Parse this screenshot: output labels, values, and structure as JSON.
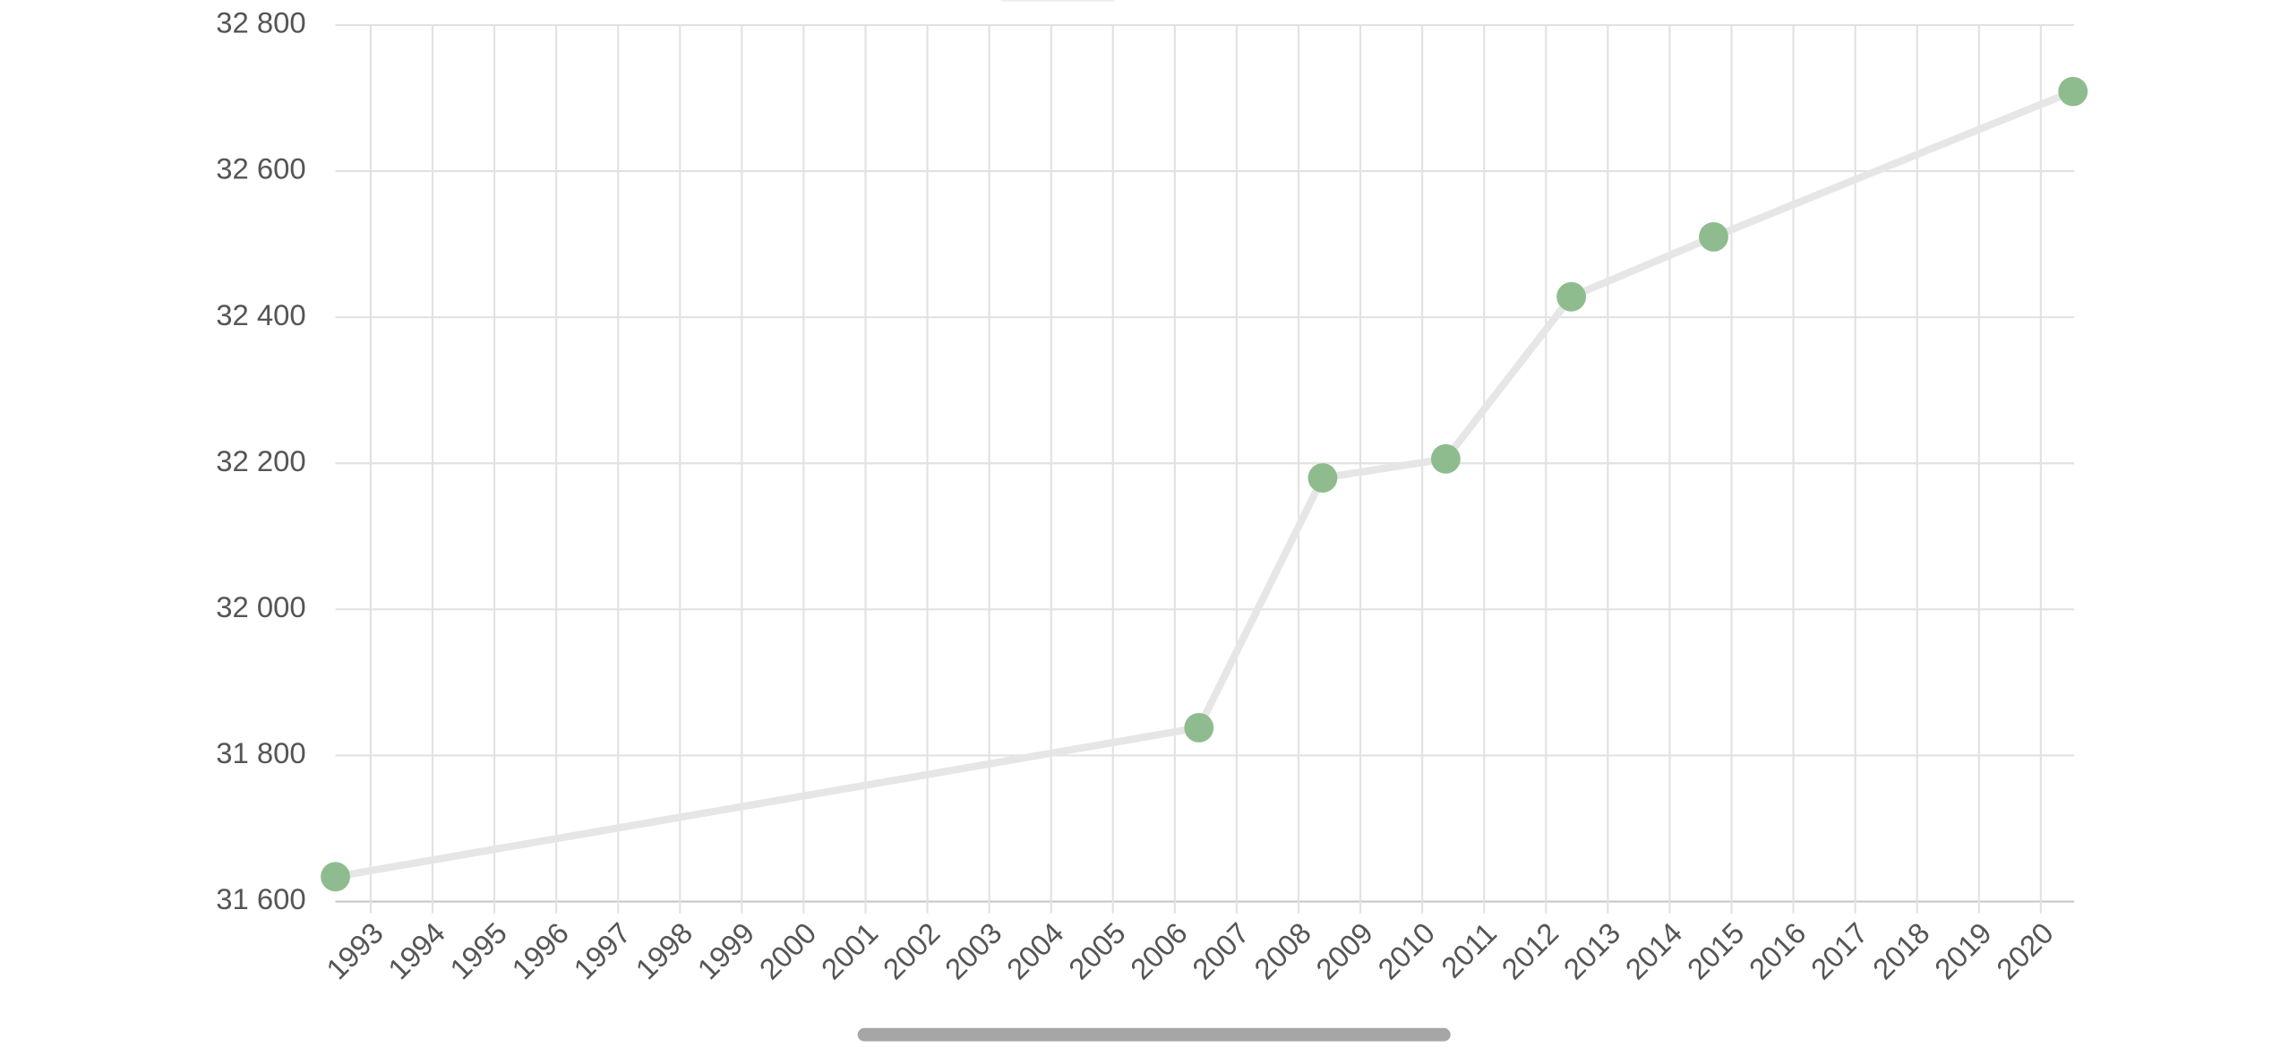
{
  "chart_data": {
    "type": "line",
    "x": [
      1992.43,
      2006.39,
      2008.39,
      2010.38,
      2012.41,
      2014.71,
      2020.52
    ],
    "values": [
      31634,
      31838,
      32180,
      32206,
      32428,
      32510,
      32709
    ],
    "line_color": "#e6e6e6",
    "color": "#8fbc8f",
    "xlim": [
      1992.43,
      2020.54
    ],
    "xticks": [
      1993,
      1994,
      1995,
      1996,
      1997,
      1998,
      1999,
      2000,
      2001,
      2002,
      2003,
      2004,
      2005,
      2006,
      2007,
      2008,
      2009,
      2010,
      2011,
      2012,
      2013,
      2014,
      2015,
      2016,
      2017,
      2018,
      2019,
      2020
    ],
    "ylim": [
      31600,
      32800
    ],
    "yticks": [
      {
        "value": 31600,
        "label": "31 600"
      },
      {
        "value": 31800,
        "label": "31 800"
      },
      {
        "value": 32000,
        "label": "32 000"
      },
      {
        "value": 32200,
        "label": "32 200"
      },
      {
        "value": 32400,
        "label": "32 400"
      },
      {
        "value": 32600,
        "label": "32 600"
      },
      {
        "value": 32800,
        "label": "32 800"
      }
    ],
    "grid": true
  }
}
